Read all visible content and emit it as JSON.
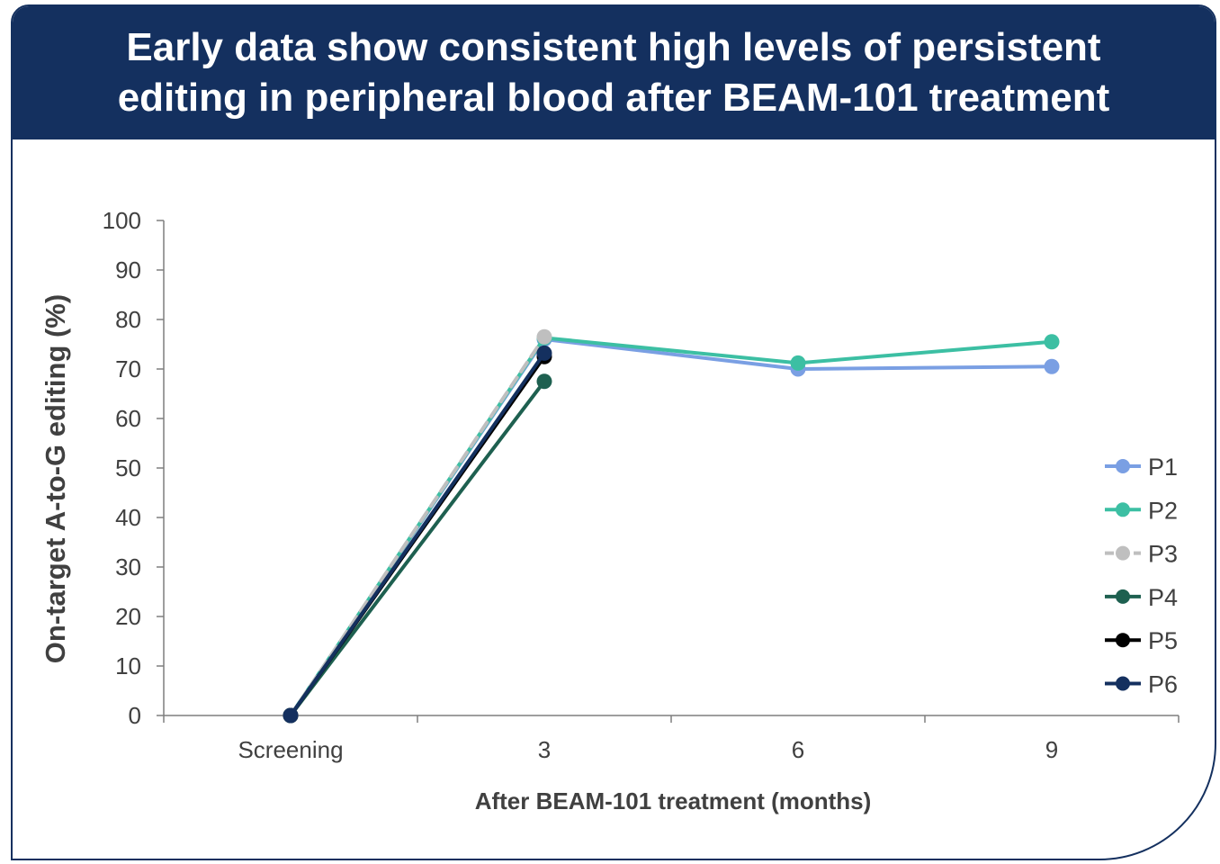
{
  "header": {
    "title_line1": "Early data show consistent high levels of persistent",
    "title_line2": "editing in peripheral blood after BEAM-101 treatment"
  },
  "chart_data": {
    "type": "line",
    "categories": [
      "Screening",
      "3",
      "6",
      "9"
    ],
    "xlabel": "After BEAM-101 treatment (months)",
    "ylabel": "On-target A-to-G editing (%)",
    "ylim": [
      0,
      100
    ],
    "yticks": [
      0,
      10,
      20,
      30,
      40,
      50,
      60,
      70,
      80,
      90,
      100
    ],
    "legend_position": "right",
    "series": [
      {
        "name": "P1",
        "color": "#7a9fe3",
        "dashed": false,
        "values": [
          0,
          76,
          70,
          70.5
        ]
      },
      {
        "name": "P2",
        "color": "#3cbfa3",
        "dashed": false,
        "values": [
          0,
          76.3,
          71.2,
          75.5
        ]
      },
      {
        "name": "P3",
        "color": "#bfbfbf",
        "dashed": true,
        "values": [
          0,
          76.5,
          null,
          null
        ]
      },
      {
        "name": "P4",
        "color": "#1e6050",
        "dashed": false,
        "values": [
          0,
          67.5,
          null,
          null
        ]
      },
      {
        "name": "P5",
        "color": "#000000",
        "dashed": false,
        "values": [
          0,
          72.5,
          null,
          null
        ]
      },
      {
        "name": "P6",
        "color": "#14305f",
        "dashed": false,
        "values": [
          0,
          73.2,
          null,
          null
        ]
      }
    ]
  }
}
